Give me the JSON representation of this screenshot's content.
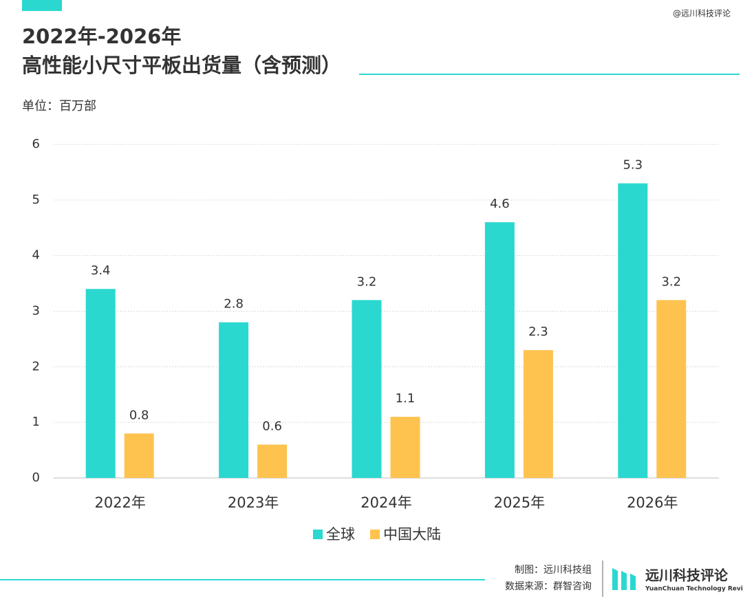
{
  "chart_data": {
    "type": "bar",
    "title": "2022年-2026年",
    "subtitle": "高性能小尺寸平板出货量（含预测）",
    "unit_label": "单位：百万部",
    "categories": [
      "2022年",
      "2023年",
      "2024年",
      "2025年",
      "2026年"
    ],
    "series": [
      {
        "name": "全球",
        "color": "#2ad8d0",
        "values": [
          3.4,
          2.8,
          3.2,
          4.6,
          5.3
        ]
      },
      {
        "name": "中国大陆",
        "color": "#fec34f",
        "values": [
          0.8,
          0.6,
          1.1,
          2.3,
          3.2
        ]
      }
    ],
    "ylim": [
      0,
      6
    ],
    "yticks": [
      0,
      1,
      2,
      3,
      4,
      5,
      6
    ],
    "grid": true,
    "legend": "bottom"
  },
  "watermark": "@远川科技评论",
  "credits": {
    "made_by": "制图：远川科技组",
    "source": "数据来源：群智咨询",
    "brand": "远川科技评论",
    "brand_en": "YuanChuan Technology Review"
  }
}
